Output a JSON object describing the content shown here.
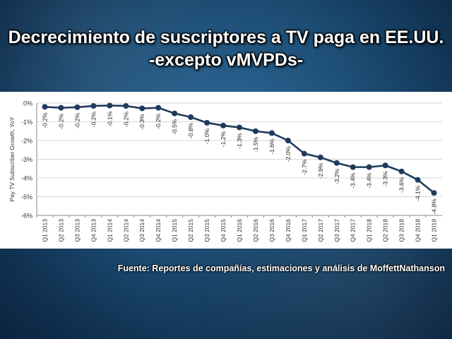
{
  "title_line1": "Decrecimiento de suscriptores a TV paga en EE.UU.",
  "title_line2": "-excepto vMVPDs-",
  "source": "Fuente: Reportes de compañías, estimaciones y análisis de MoffettNathanson",
  "chart_data": {
    "type": "line",
    "ylabel": "Pay TV Subscriber Growth, YoY",
    "ylim": [
      -6,
      0
    ],
    "yticks": [
      0,
      -1,
      -2,
      -3,
      -4,
      -5,
      -6
    ],
    "ytick_labels": [
      "0%",
      "-1%",
      "-2%",
      "-3%",
      "-4%",
      "-5%",
      "-6%"
    ],
    "grid": true,
    "categories": [
      "Q1 2013",
      "Q2 2013",
      "Q3 2013",
      "Q4 2013",
      "Q1 2014",
      "Q2 2014",
      "Q3 2014",
      "Q4 2014",
      "Q1 2015",
      "Q2 2015",
      "Q3 2015",
      "Q4 2015",
      "Q1 2016",
      "Q2 2016",
      "Q3 2016",
      "Q4 2016",
      "Q1 2017",
      "Q2 2017",
      "Q3 2017",
      "Q4 2017",
      "Q1 2018",
      "Q2 2018",
      "Q3 2018",
      "Q4 2018",
      "Q1 2019"
    ],
    "values": [
      -0.2,
      -0.25,
      -0.22,
      -0.15,
      -0.13,
      -0.15,
      -0.28,
      -0.25,
      -0.55,
      -0.75,
      -1.05,
      -1.2,
      -1.3,
      -1.5,
      -1.6,
      -2.0,
      -2.7,
      -2.9,
      -3.2,
      -3.42,
      -3.42,
      -3.33,
      -3.65,
      -4.1,
      -4.8
    ],
    "data_labels": [
      "-0.2%",
      "-0.2%",
      "-0.2%",
      "-0.2%",
      "-0.1%",
      "-0.2%",
      "-0.3%",
      "-0.2%",
      "-0.5%",
      "-0.8%",
      "-1.0%",
      "-1.2%",
      "-1.3%",
      "-1.5%",
      "-1.6%",
      "-2.0%",
      "-2.7%",
      "-2.9%",
      "-3.2%",
      "-3.4%",
      "-3.4%",
      "-3.3%",
      "-3.6%",
      "-4.1%",
      "-4.8%"
    ],
    "line_color": "#1f3b5c"
  }
}
